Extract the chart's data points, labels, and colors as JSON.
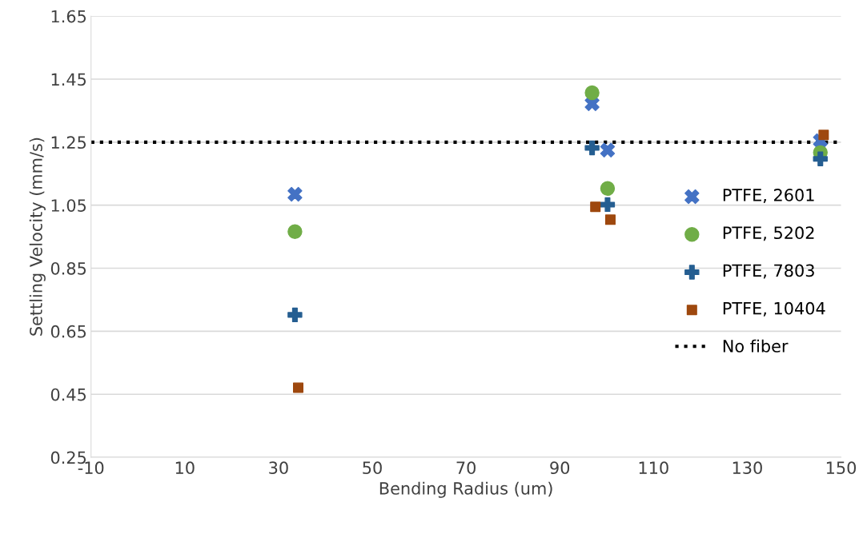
{
  "chart_data": {
    "type": "scatter",
    "xlabel": "Bending Radius (um)",
    "ylabel": "Settling Velocity (mm/s)",
    "xlim": [
      -10,
      150
    ],
    "xticks": [
      -10,
      10,
      30,
      50,
      70,
      90,
      110,
      130,
      150
    ],
    "ylim": [
      0.25,
      1.65
    ],
    "yticks": [
      {
        "value": 0.25,
        "label": "0.25"
      },
      {
        "value": 0.45,
        "label": "0.45"
      },
      {
        "value": 0.65,
        "label": "0.65"
      },
      {
        "value": 0.85,
        "label": "0.85"
      },
      {
        "value": 1.05,
        "label": "1.05"
      },
      {
        "value": 1.25,
        "label": "1.25"
      },
      {
        "value": 1.45,
        "label": "1.45"
      },
      {
        "value": 1.65,
        "label": "1.65"
      }
    ],
    "grid": "y",
    "legend": "right",
    "series": [
      {
        "name": "PTFE, 2601",
        "color": "#4472c4",
        "marker": "cross",
        "x": [
          33.5,
          96.9,
          100.2,
          145.6
        ],
        "values": [
          1.085,
          1.372,
          1.225,
          1.255
        ]
      },
      {
        "name": "PTFE, 5202",
        "color": "#70ad47",
        "marker": "circle",
        "x": [
          33.5,
          96.9,
          100.2,
          145.6
        ],
        "values": [
          0.966,
          1.407,
          1.103,
          1.217
        ]
      },
      {
        "name": "PTFE, 7803",
        "color": "#255e91",
        "marker": "plus",
        "x": [
          33.5,
          96.9,
          100.2,
          145.6
        ],
        "values": [
          0.702,
          1.232,
          1.052,
          1.197
        ]
      },
      {
        "name": "PTFE, 10404",
        "color": "#9e480e",
        "marker": "square",
        "x": [
          34.2,
          97.6,
          100.8,
          146.3
        ],
        "values": [
          0.471,
          1.045,
          1.004,
          1.273
        ]
      }
    ],
    "ref_lines": [
      {
        "axis": "y",
        "value": 1.25,
        "label": "No fiber",
        "color": "#000000",
        "line_style": "dotted"
      }
    ]
  }
}
